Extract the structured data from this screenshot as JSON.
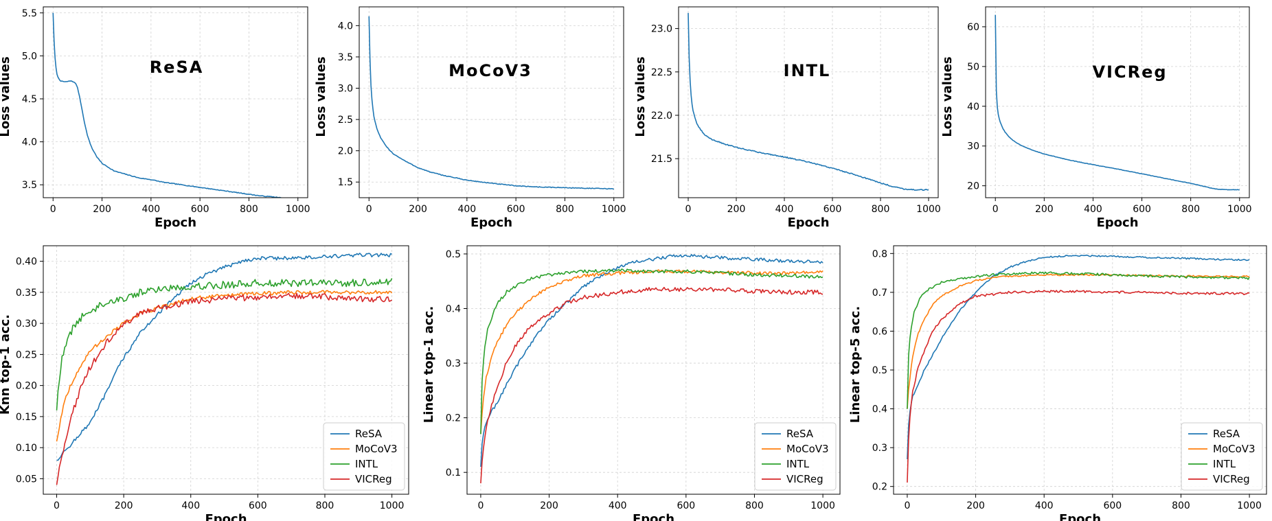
{
  "chart_data": [
    {
      "type": "line",
      "panel_label": "ReSA",
      "xlabel": "Epoch",
      "ylabel": "Loss values",
      "xlim": [
        -40,
        1040
      ],
      "ylim": [
        3.35,
        5.57
      ],
      "xticks": [
        0,
        200,
        400,
        600,
        800,
        1000
      ],
      "yticks": [
        3.5,
        4.0,
        4.5,
        5.0,
        5.5
      ],
      "ytick_labels": [
        "3.5",
        "4.0",
        "4.5",
        "5.0",
        "5.5"
      ],
      "grid": true,
      "series": [
        {
          "color": "#1f77b4",
          "x": [
            0,
            5,
            10,
            15,
            20,
            30,
            40,
            50,
            60,
            70,
            80,
            90,
            100,
            110,
            120,
            130,
            140,
            150,
            160,
            180,
            200,
            250,
            300,
            350,
            400,
            450,
            500,
            550,
            600,
            650,
            700,
            750,
            800,
            850,
            900,
            950,
            1000
          ],
          "y": [
            5.5,
            5.1,
            4.9,
            4.8,
            4.75,
            4.71,
            4.7,
            4.7,
            4.7,
            4.71,
            4.7,
            4.69,
            4.63,
            4.5,
            4.35,
            4.2,
            4.08,
            3.99,
            3.92,
            3.82,
            3.75,
            3.66,
            3.62,
            3.58,
            3.56,
            3.53,
            3.51,
            3.49,
            3.47,
            3.45,
            3.43,
            3.41,
            3.39,
            3.37,
            3.36,
            3.34,
            3.33
          ],
          "noise": 0.004
        }
      ]
    },
    {
      "type": "line",
      "panel_label": "MoCoV3",
      "xlabel": "Epoch",
      "ylabel": "Loss values",
      "xlim": [
        -40,
        1040
      ],
      "ylim": [
        1.25,
        4.3
      ],
      "xticks": [
        0,
        200,
        400,
        600,
        800,
        1000
      ],
      "yticks": [
        1.5,
        2.0,
        2.5,
        3.0,
        3.5,
        4.0
      ],
      "ytick_labels": [
        "1.5",
        "2.0",
        "2.5",
        "3.0",
        "3.5",
        "4.0"
      ],
      "grid": true,
      "series": [
        {
          "color": "#1f77b4",
          "x": [
            0,
            3,
            6,
            10,
            15,
            20,
            30,
            40,
            50,
            70,
            100,
            150,
            200,
            250,
            300,
            400,
            500,
            600,
            700,
            800,
            900,
            1000
          ],
          "y": [
            4.15,
            3.6,
            3.2,
            2.9,
            2.7,
            2.55,
            2.38,
            2.27,
            2.19,
            2.07,
            1.95,
            1.83,
            1.73,
            1.66,
            1.61,
            1.53,
            1.48,
            1.44,
            1.42,
            1.41,
            1.4,
            1.39
          ],
          "noise": 0.006
        }
      ]
    },
    {
      "type": "line",
      "panel_label": "INTL",
      "xlabel": "Epoch",
      "ylabel": "Loss values",
      "xlim": [
        -40,
        1040
      ],
      "ylim": [
        21.05,
        23.25
      ],
      "xticks": [
        0,
        200,
        400,
        600,
        800,
        1000
      ],
      "yticks": [
        21.5,
        22.0,
        22.5,
        23.0
      ],
      "ytick_labels": [
        "21.5",
        "22.0",
        "22.5",
        "23.0"
      ],
      "grid": true,
      "series": [
        {
          "color": "#1f77b4",
          "x": [
            0,
            3,
            6,
            10,
            15,
            20,
            30,
            40,
            50,
            70,
            100,
            150,
            200,
            300,
            400,
            500,
            600,
            700,
            800,
            850,
            900,
            950,
            1000
          ],
          "y": [
            23.18,
            22.75,
            22.5,
            22.3,
            22.15,
            22.05,
            21.95,
            21.88,
            21.84,
            21.77,
            21.72,
            21.67,
            21.63,
            21.57,
            21.52,
            21.46,
            21.39,
            21.31,
            21.22,
            21.18,
            21.15,
            21.14,
            21.14
          ],
          "noise": 0.006
        }
      ]
    },
    {
      "type": "line",
      "panel_label": "VICReg",
      "xlabel": "Epoch",
      "ylabel": "Loss values",
      "xlim": [
        -40,
        1040
      ],
      "ylim": [
        17,
        65
      ],
      "xticks": [
        0,
        200,
        400,
        600,
        800,
        1000
      ],
      "yticks": [
        20,
        30,
        40,
        50,
        60
      ],
      "ytick_labels": [
        "20",
        "30",
        "40",
        "50",
        "60"
      ],
      "grid": true,
      "series": [
        {
          "color": "#1f77b4",
          "x": [
            0,
            2,
            4,
            6,
            10,
            15,
            20,
            30,
            40,
            50,
            70,
            100,
            150,
            200,
            300,
            400,
            500,
            600,
            700,
            800,
            850,
            900,
            950,
            1000
          ],
          "y": [
            63,
            50,
            44,
            41,
            38.5,
            37,
            36,
            34.5,
            33.5,
            32.7,
            31.5,
            30.3,
            29,
            28,
            26.5,
            25.3,
            24.2,
            23,
            21.8,
            20.6,
            19.9,
            19.2,
            19,
            19
          ],
          "noise": 0.05
        }
      ]
    },
    {
      "type": "line",
      "xlabel": "Epoch",
      "ylabel": "Knn top-1 acc.",
      "xlim": [
        -40,
        1050
      ],
      "ylim": [
        0.025,
        0.425
      ],
      "xticks": [
        0,
        200,
        400,
        600,
        800,
        1000
      ],
      "yticks": [
        0.05,
        0.1,
        0.15,
        0.2,
        0.25,
        0.3,
        0.35,
        0.4
      ],
      "ytick_labels": [
        "0.05",
        "0.10",
        "0.15",
        "0.20",
        "0.25",
        "0.30",
        "0.35",
        "0.40"
      ],
      "grid": true,
      "legend_position": "lower-right",
      "series": [
        {
          "name": "ReSA",
          "color": "#1f77b4",
          "x": [
            0,
            10,
            25,
            50,
            75,
            100,
            125,
            150,
            175,
            200,
            250,
            300,
            350,
            400,
            450,
            500,
            550,
            600,
            700,
            800,
            900,
            1000
          ],
          "y": [
            0.08,
            0.085,
            0.095,
            0.11,
            0.125,
            0.14,
            0.165,
            0.19,
            0.22,
            0.245,
            0.285,
            0.315,
            0.34,
            0.365,
            0.38,
            0.39,
            0.4,
            0.405,
            0.405,
            0.407,
            0.41,
            0.41
          ],
          "noise": 0.003
        },
        {
          "name": "MoCoV3",
          "color": "#ff7f0e",
          "x": [
            0,
            10,
            25,
            50,
            75,
            100,
            150,
            200,
            250,
            300,
            400,
            500,
            600,
            700,
            800,
            900,
            1000
          ],
          "y": [
            0.11,
            0.14,
            0.18,
            0.21,
            0.235,
            0.255,
            0.28,
            0.3,
            0.315,
            0.325,
            0.34,
            0.345,
            0.348,
            0.35,
            0.35,
            0.35,
            0.35
          ],
          "noise": 0.003
        },
        {
          "name": "INTL",
          "color": "#2ca02c",
          "x": [
            0,
            5,
            15,
            30,
            50,
            75,
            100,
            150,
            200,
            250,
            300,
            400,
            500,
            600,
            700,
            800,
            900,
            1000
          ],
          "y": [
            0.16,
            0.2,
            0.24,
            0.27,
            0.295,
            0.31,
            0.32,
            0.335,
            0.34,
            0.35,
            0.355,
            0.36,
            0.362,
            0.365,
            0.365,
            0.365,
            0.365,
            0.368
          ],
          "noise": 0.006
        },
        {
          "name": "VICReg",
          "color": "#d62728",
          "x": [
            0,
            10,
            25,
            50,
            75,
            100,
            150,
            200,
            250,
            300,
            400,
            500,
            600,
            700,
            800,
            900,
            1000
          ],
          "y": [
            0.04,
            0.07,
            0.11,
            0.16,
            0.2,
            0.23,
            0.27,
            0.3,
            0.315,
            0.325,
            0.335,
            0.34,
            0.342,
            0.345,
            0.343,
            0.34,
            0.338
          ],
          "noise": 0.005
        }
      ]
    },
    {
      "type": "line",
      "xlabel": "Epoch",
      "ylabel": "Linear top-1 acc.",
      "xlim": [
        -40,
        1050
      ],
      "ylim": [
        0.06,
        0.515
      ],
      "xticks": [
        0,
        200,
        400,
        600,
        800,
        1000
      ],
      "yticks": [
        0.1,
        0.2,
        0.3,
        0.4,
        0.5
      ],
      "ytick_labels": [
        "0.1",
        "0.2",
        "0.3",
        "0.4",
        "0.5"
      ],
      "grid": true,
      "legend_position": "lower-right",
      "series": [
        {
          "name": "ReSA",
          "color": "#1f77b4",
          "x": [
            0,
            5,
            15,
            30,
            50,
            75,
            100,
            150,
            200,
            250,
            300,
            350,
            400,
            450,
            500,
            550,
            600,
            650,
            700,
            800,
            900,
            1000
          ],
          "y": [
            0.11,
            0.16,
            0.19,
            0.21,
            0.23,
            0.26,
            0.29,
            0.34,
            0.38,
            0.41,
            0.44,
            0.46,
            0.475,
            0.485,
            0.49,
            0.495,
            0.498,
            0.495,
            0.493,
            0.49,
            0.487,
            0.485
          ],
          "noise": 0.003
        },
        {
          "name": "MoCoV3",
          "color": "#ff7f0e",
          "x": [
            0,
            5,
            15,
            30,
            50,
            75,
            100,
            150,
            200,
            250,
            300,
            400,
            500,
            600,
            700,
            800,
            900,
            1000
          ],
          "y": [
            0.17,
            0.22,
            0.27,
            0.31,
            0.34,
            0.37,
            0.39,
            0.42,
            0.44,
            0.45,
            0.46,
            0.465,
            0.468,
            0.468,
            0.466,
            0.465,
            0.465,
            0.467
          ],
          "noise": 0.003
        },
        {
          "name": "INTL",
          "color": "#2ca02c",
          "x": [
            0,
            3,
            10,
            20,
            35,
            50,
            75,
            100,
            150,
            200,
            250,
            300,
            400,
            500,
            600,
            700,
            800,
            900,
            1000
          ],
          "y": [
            0.17,
            0.26,
            0.32,
            0.36,
            0.39,
            0.41,
            0.43,
            0.44,
            0.455,
            0.462,
            0.465,
            0.468,
            0.47,
            0.468,
            0.468,
            0.465,
            0.462,
            0.46,
            0.458
          ],
          "noise": 0.003
        },
        {
          "name": "VICReg",
          "color": "#d62728",
          "x": [
            0,
            5,
            15,
            30,
            50,
            75,
            100,
            150,
            200,
            250,
            300,
            400,
            500,
            600,
            700,
            800,
            900,
            1000
          ],
          "y": [
            0.08,
            0.13,
            0.18,
            0.22,
            0.26,
            0.3,
            0.33,
            0.37,
            0.39,
            0.41,
            0.42,
            0.43,
            0.435,
            0.435,
            0.435,
            0.432,
            0.43,
            0.43
          ],
          "noise": 0.004
        }
      ]
    },
    {
      "type": "line",
      "xlabel": "Epoch",
      "ylabel": "Linear top-5 acc.",
      "xlim": [
        -40,
        1050
      ],
      "ylim": [
        0.18,
        0.82
      ],
      "xticks": [
        0,
        200,
        400,
        600,
        800,
        1000
      ],
      "yticks": [
        0.2,
        0.3,
        0.4,
        0.5,
        0.6,
        0.7,
        0.8
      ],
      "ytick_labels": [
        "0.2",
        "0.3",
        "0.4",
        "0.5",
        "0.6",
        "0.7",
        "0.8"
      ],
      "grid": true,
      "legend_position": "lower-right",
      "series": [
        {
          "name": "ReSA",
          "color": "#1f77b4",
          "x": [
            0,
            5,
            15,
            30,
            50,
            75,
            100,
            150,
            200,
            250,
            300,
            350,
            400,
            450,
            500,
            600,
            700,
            800,
            900,
            1000
          ],
          "y": [
            0.27,
            0.38,
            0.43,
            0.46,
            0.5,
            0.54,
            0.58,
            0.65,
            0.7,
            0.74,
            0.765,
            0.78,
            0.79,
            0.793,
            0.795,
            0.793,
            0.79,
            0.788,
            0.785,
            0.783
          ],
          "noise": 0.002
        },
        {
          "name": "MoCoV3",
          "color": "#ff7f0e",
          "x": [
            0,
            5,
            15,
            30,
            50,
            75,
            100,
            150,
            200,
            250,
            300,
            400,
            500,
            600,
            700,
            800,
            900,
            1000
          ],
          "y": [
            0.4,
            0.46,
            0.53,
            0.59,
            0.63,
            0.67,
            0.69,
            0.715,
            0.73,
            0.737,
            0.742,
            0.745,
            0.745,
            0.745,
            0.743,
            0.742,
            0.741,
            0.741
          ],
          "noise": 0.002
        },
        {
          "name": "INTL",
          "color": "#2ca02c",
          "x": [
            0,
            3,
            10,
            20,
            35,
            50,
            75,
            100,
            150,
            200,
            250,
            300,
            400,
            500,
            600,
            700,
            800,
            900,
            1000
          ],
          "y": [
            0.4,
            0.53,
            0.6,
            0.65,
            0.68,
            0.7,
            0.715,
            0.725,
            0.735,
            0.74,
            0.745,
            0.748,
            0.75,
            0.748,
            0.745,
            0.742,
            0.74,
            0.738,
            0.736
          ],
          "noise": 0.003
        },
        {
          "name": "VICReg",
          "color": "#d62728",
          "x": [
            0,
            5,
            15,
            30,
            50,
            75,
            100,
            150,
            200,
            250,
            300,
            400,
            500,
            600,
            700,
            800,
            900,
            1000
          ],
          "y": [
            0.21,
            0.35,
            0.44,
            0.5,
            0.55,
            0.6,
            0.63,
            0.67,
            0.69,
            0.695,
            0.7,
            0.702,
            0.702,
            0.7,
            0.7,
            0.698,
            0.697,
            0.697
          ],
          "noise": 0.003
        }
      ]
    }
  ]
}
